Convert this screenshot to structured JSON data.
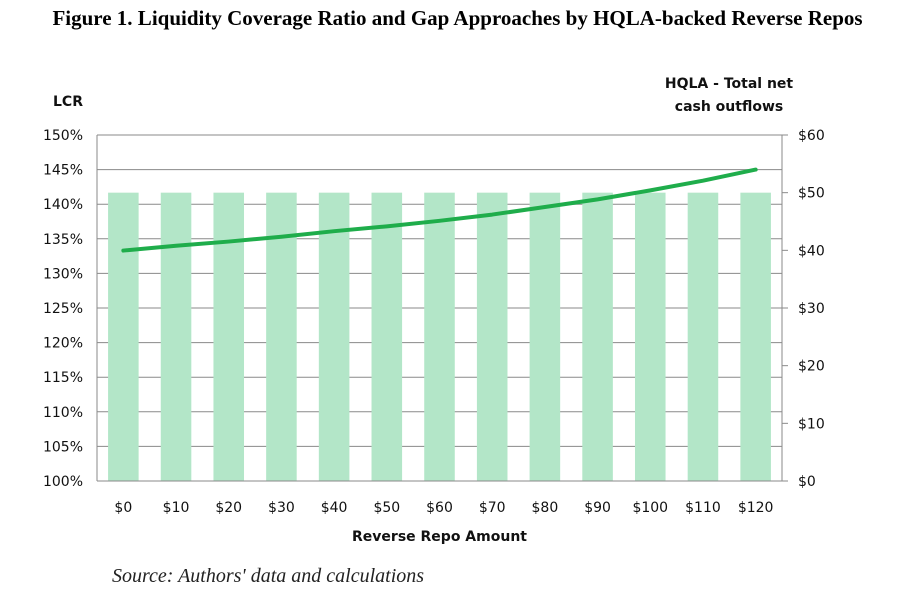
{
  "title": "Figure 1. Liquidity Coverage Ratio and Gap Approaches by HQLA-backed Reverse Repos",
  "source": "Source: Authors' data and calculations",
  "chart_data": {
    "type": "bar+line",
    "categories": [
      "$0",
      "$10",
      "$20",
      "$30",
      "$40",
      "$50",
      "$60",
      "$70",
      "$80",
      "$90",
      "$100",
      "$110",
      "$120"
    ],
    "xlabel": "Reverse Repo Amount",
    "ylabel_left": "LCR",
    "ylabel_right_line1": "HQLA - Total net",
    "ylabel_right_line2": "cash outflows",
    "ylim_left": [
      1.0,
      1.5
    ],
    "yticks_left": [
      "100%",
      "105%",
      "110%",
      "115%",
      "120%",
      "125%",
      "130%",
      "135%",
      "140%",
      "145%",
      "150%"
    ],
    "ylim_right": [
      0,
      60
    ],
    "yticks_right": [
      "$0",
      "$10",
      "$20",
      "$30",
      "$40",
      "$50",
      "$60"
    ],
    "grid": true,
    "series": [
      {
        "axis": "right",
        "kind": "bar",
        "color": "#b3e6c8",
        "values": [
          50,
          50,
          50,
          50,
          50,
          50,
          50,
          50,
          50,
          50,
          50,
          50,
          50
        ]
      },
      {
        "axis": "left",
        "kind": "line",
        "color": "#1fad4b",
        "values": [
          1.333,
          1.34,
          1.346,
          1.353,
          1.361,
          1.368,
          1.376,
          1.385,
          1.396,
          1.407,
          1.42,
          1.434,
          1.45
        ]
      }
    ]
  }
}
